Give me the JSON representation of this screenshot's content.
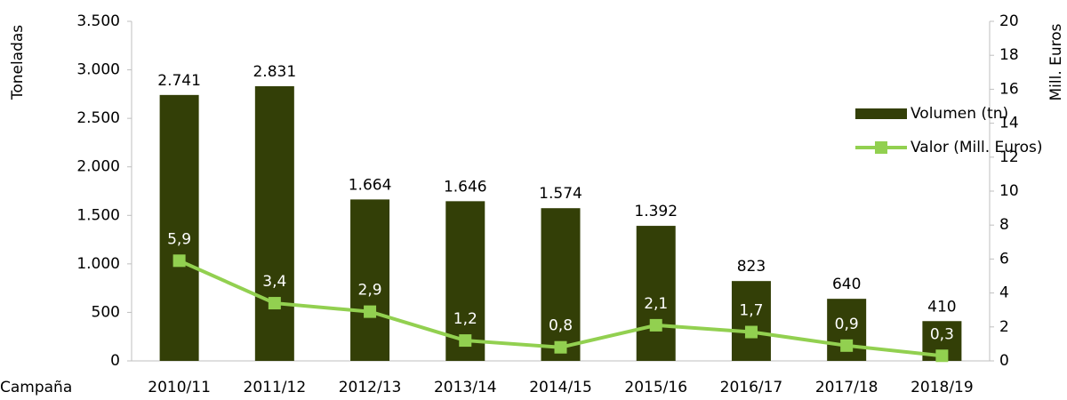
{
  "chart_data": {
    "type": "bar",
    "x_label": "Campaña",
    "y_label": "Toneladas",
    "y2_label": "Mill. Euros",
    "categories": [
      "2010/11",
      "2011/12",
      "2012/13",
      "2013/14",
      "2014/15",
      "2015/16",
      "2016/17",
      "2017/18",
      "2018/19"
    ],
    "series": [
      {
        "name": "Volumen (tn)",
        "type": "bar",
        "color": "#333f07",
        "values": [
          2741,
          2831,
          1664,
          1646,
          1574,
          1392,
          823,
          640,
          410
        ],
        "value_labels": [
          "2.741",
          "2.831",
          "1.664",
          "1.646",
          "1.574",
          "1.392",
          "823",
          "640",
          "410"
        ]
      },
      {
        "name": "Valor (Mill. Euros)",
        "type": "line",
        "axis": "y2",
        "color": "#92d050",
        "values": [
          5.9,
          3.4,
          2.9,
          1.2,
          0.8,
          2.1,
          1.7,
          0.9,
          0.3
        ],
        "value_labels": [
          "5,9",
          "3,4",
          "2,9",
          "1,2",
          "0,8",
          "2,1",
          "1,7",
          "0,9",
          "0,3"
        ]
      }
    ],
    "ylim": [
      0,
      3500
    ],
    "yticks": [
      0,
      500,
      {
        "value": 1000,
        "label": "1.000"
      },
      {
        "value": 1500,
        "label": "1.500"
      },
      {
        "value": 2000,
        "label": "2.000"
      },
      {
        "value": 2500,
        "label": "2.500"
      },
      {
        "value": 3000,
        "label": "3.000"
      },
      {
        "value": 3500,
        "label": "3.500"
      }
    ],
    "y2lim": [
      0,
      20
    ],
    "y2ticks": [
      0,
      2,
      4,
      6,
      8,
      10,
      12,
      14,
      16,
      18,
      20
    ],
    "legend": "upper right"
  }
}
